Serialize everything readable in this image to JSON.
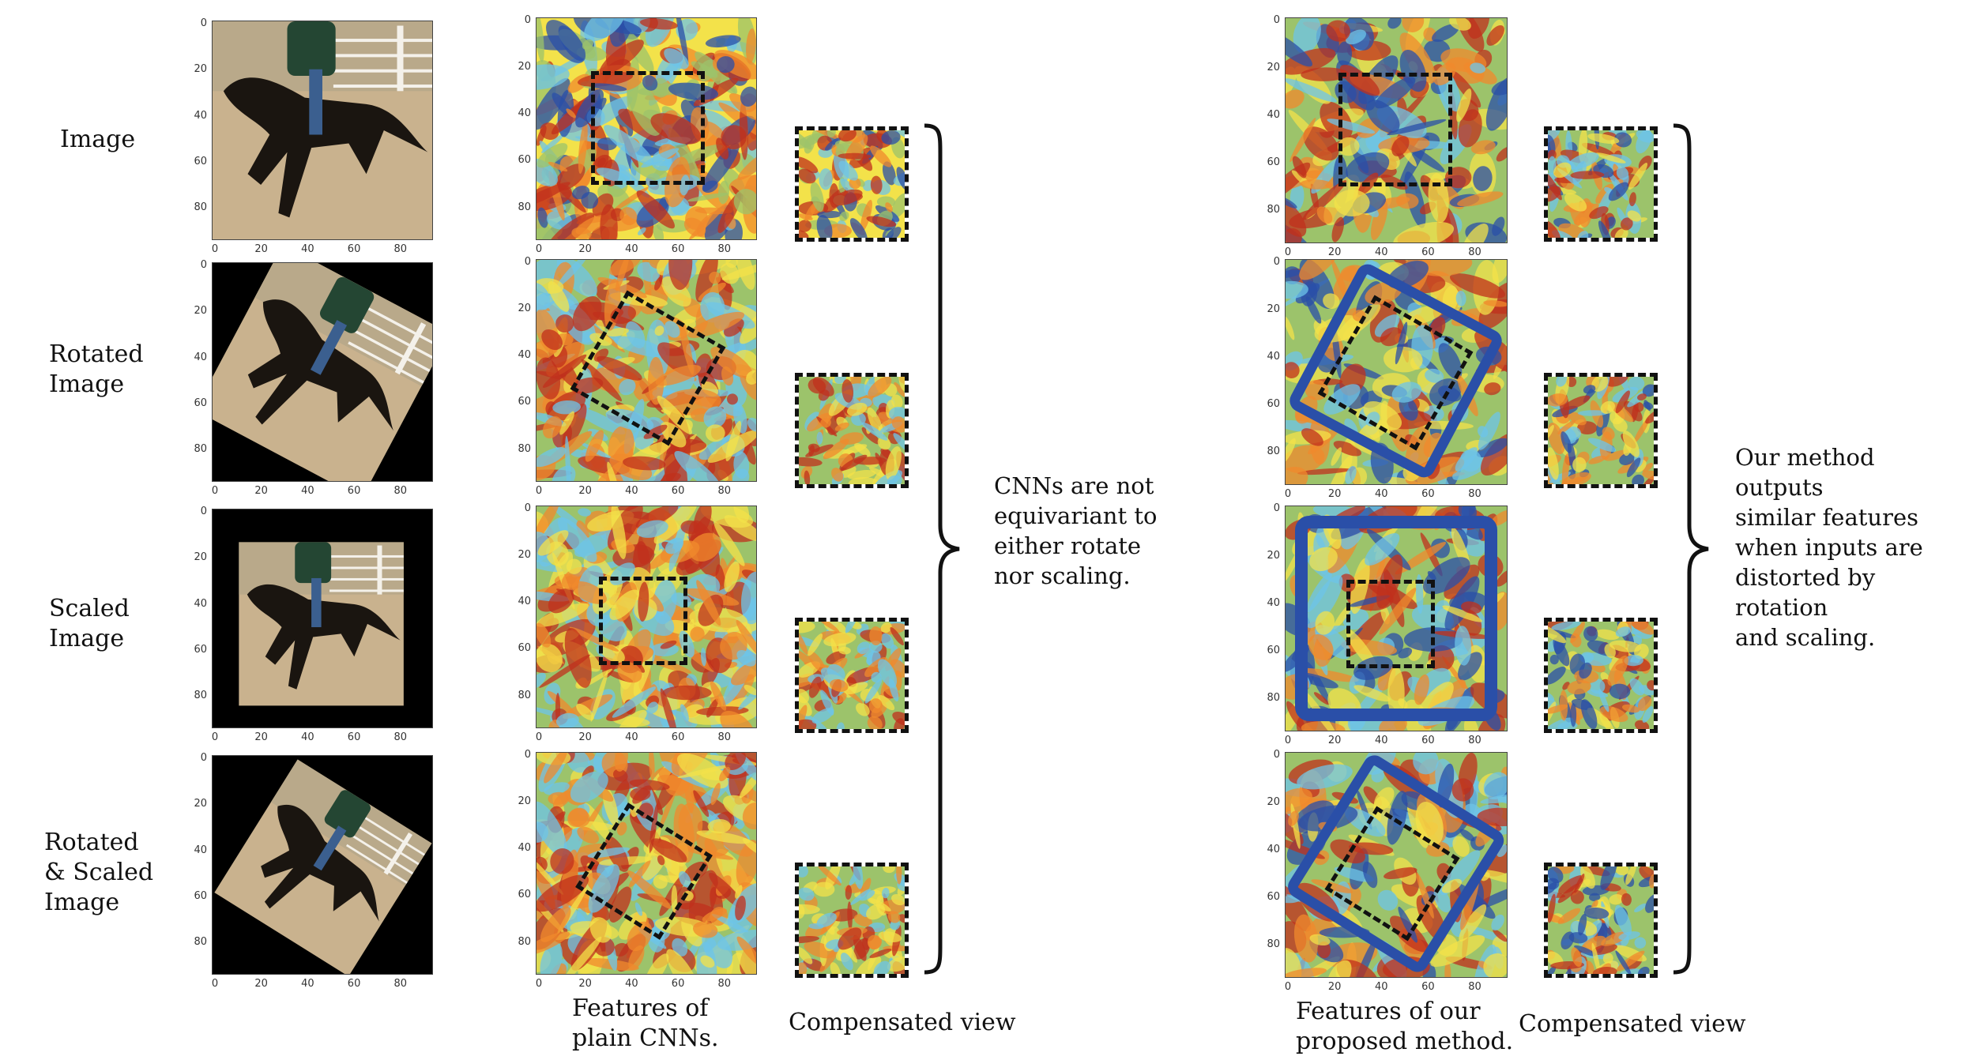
{
  "rows": [
    {
      "label_lines": [
        "Image"
      ]
    },
    {
      "label_lines": [
        "Rotated",
        "Image"
      ]
    },
    {
      "label_lines": [
        "Scaled",
        "Image"
      ]
    },
    {
      "label_lines": [
        "Rotated",
        "& Scaled",
        "Image"
      ]
    }
  ],
  "ticks": {
    "y": [
      "0",
      "20",
      "40",
      "60",
      "80"
    ],
    "x": [
      "0",
      "20",
      "40",
      "60",
      "80"
    ]
  },
  "captions": {
    "cnn_features": [
      "Features of",
      "plain CNNs."
    ],
    "cnn_compensated": "Compensated view",
    "ours_features": [
      "Features of our",
      "proposed method."
    ],
    "ours_compensated": "Compensated view"
  },
  "notes": {
    "cnn": [
      "CNNs are not",
      "equivariant to",
      "either rotate",
      "nor scaling."
    ],
    "ours": [
      "Our method outputs",
      "similar features",
      "when inputs are",
      "distorted by rotation",
      "and scaling."
    ]
  },
  "colors": {
    "heat_red": "#c0301c",
    "heat_orange": "#f08a2c",
    "heat_yellow": "#f3e24a",
    "heat_green": "#9cc36b",
    "heat_cyan": "#6ec4e8",
    "heat_blue": "#2a4fa8",
    "image_sand": "#c9b28e",
    "horse": "#1a1510"
  }
}
